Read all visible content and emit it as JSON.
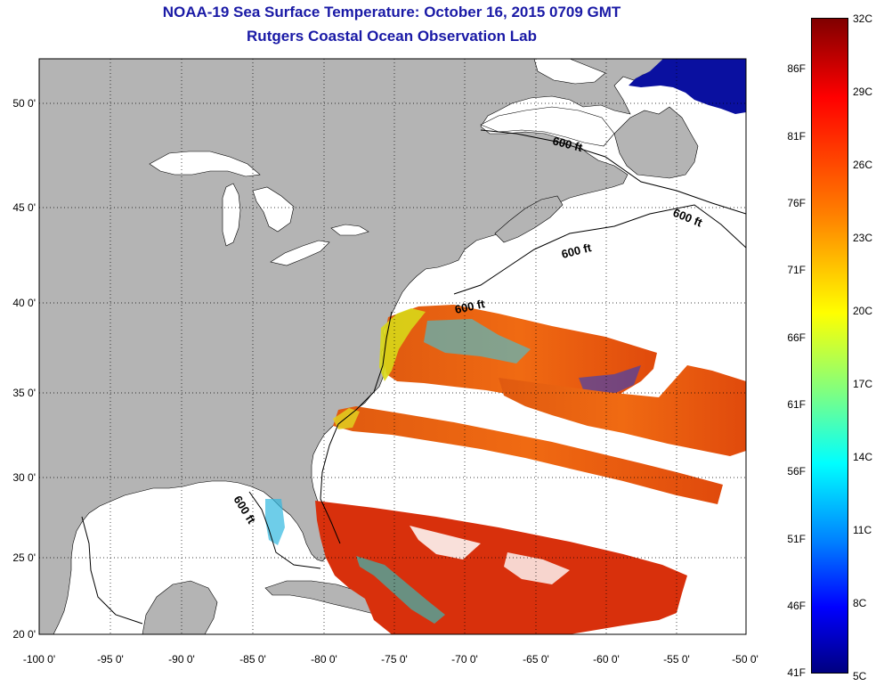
{
  "title": {
    "line1": "NOAA-19 Sea Surface Temperature:  October 16, 2015 0709 GMT",
    "line2": "Rutgers Coastal Ocean Observation Lab"
  },
  "map": {
    "lat_labels": [
      {
        "value": 50,
        "label": "50 0'"
      },
      {
        "value": 45,
        "label": "45 0'"
      },
      {
        "value": 40,
        "label": "40 0'"
      },
      {
        "value": 35,
        "label": "35 0'"
      },
      {
        "value": 30,
        "label": "30 0'"
      },
      {
        "value": 25,
        "label": "25 0'"
      },
      {
        "value": 20,
        "label": "20 0'"
      }
    ],
    "lon_labels": [
      {
        "value": -100,
        "label": "-100 0'"
      },
      {
        "value": -95,
        "label": "-95 0'"
      },
      {
        "value": -90,
        "label": "-90 0'"
      },
      {
        "value": -85,
        "label": "-85 0'"
      },
      {
        "value": -80,
        "label": "-80 0'"
      },
      {
        "value": -75,
        "label": "-75 0'"
      },
      {
        "value": -70,
        "label": "-70 0'"
      },
      {
        "value": -65,
        "label": "-65 0'"
      },
      {
        "value": -60,
        "label": "-60 0'"
      },
      {
        "value": -55,
        "label": "-55 0'"
      },
      {
        "value": -50,
        "label": "-50 0'"
      }
    ],
    "isobath_labels": [
      "600 ft",
      "600 ft",
      "600 ft",
      "600 ft",
      "600 ft"
    ],
    "colors": {
      "land": "#b4b4b4",
      "ocean_nodata": "#ffffff",
      "grid": "#000000"
    }
  },
  "colorbar": {
    "celsius": [
      "32C",
      "29C",
      "26C",
      "23C",
      "20C",
      "17C",
      "14C",
      "11C",
      "8C",
      "5C"
    ],
    "fahrenheit": [
      "86F",
      "81F",
      "76F",
      "71F",
      "66F",
      "61F",
      "56F",
      "51F",
      "46F",
      "41F"
    ],
    "colormap": "jet",
    "min_c": 5,
    "max_c": 32
  }
}
